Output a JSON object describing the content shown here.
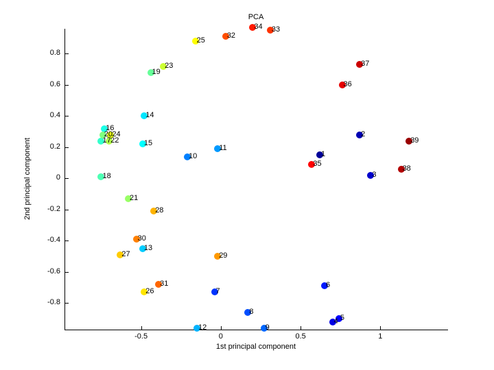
{
  "chart_data": {
    "type": "scatter",
    "title": "PCA",
    "xlabel": "1st principal component",
    "ylabel": "2nd principal component",
    "xlim": [
      -0.98,
      1.42
    ],
    "ylim": [
      -0.97,
      0.96
    ],
    "xticks": [
      "-0.5",
      "0",
      "0.5",
      "1"
    ],
    "xtick_values": [
      -0.5,
      0,
      0.5,
      1
    ],
    "yticks": [
      "0.8",
      "0.6",
      "0.4",
      "0.2",
      "0",
      "-0.2",
      "-0.4",
      "-0.6",
      "-0.8"
    ],
    "ytick_values": [
      0.8,
      0.6,
      0.4,
      0.2,
      0,
      -0.2,
      -0.4,
      -0.6,
      -0.8
    ],
    "grid": false,
    "legend": "none",
    "colormap": "jet",
    "points": [
      {
        "label": "1",
        "x": 0.62,
        "y": 0.15,
        "color": "#000099"
      },
      {
        "label": "2",
        "x": 0.87,
        "y": 0.28,
        "color": "#0000B3"
      },
      {
        "label": "3",
        "x": 0.94,
        "y": 0.02,
        "color": "#0000CC"
      },
      {
        "label": "4",
        "x": 0.7,
        "y": -0.92,
        "color": "#0000E6"
      },
      {
        "label": "5",
        "x": 0.74,
        "y": -0.9,
        "color": "#0000FF"
      },
      {
        "label": "6",
        "x": 0.65,
        "y": -0.69,
        "color": "#001AFF"
      },
      {
        "label": "7",
        "x": -0.04,
        "y": -0.73,
        "color": "#0033FF"
      },
      {
        "label": "8",
        "x": 0.17,
        "y": -0.86,
        "color": "#004DFF"
      },
      {
        "label": "9",
        "x": 0.27,
        "y": -0.96,
        "color": "#0066FF"
      },
      {
        "label": "10",
        "x": -0.21,
        "y": 0.14,
        "color": "#0080FF"
      },
      {
        "label": "11",
        "x": -0.02,
        "y": 0.19,
        "color": "#0099FF"
      },
      {
        "label": "12",
        "x": -0.15,
        "y": -0.96,
        "color": "#00B3FF"
      },
      {
        "label": "13",
        "x": -0.49,
        "y": -0.45,
        "color": "#00CCFF"
      },
      {
        "label": "14",
        "x": -0.48,
        "y": 0.4,
        "color": "#00E6FF"
      },
      {
        "label": "15",
        "x": -0.49,
        "y": 0.22,
        "color": "#00FFFF"
      },
      {
        "label": "16",
        "x": -0.73,
        "y": 0.32,
        "color": "#1AFFE6"
      },
      {
        "label": "17",
        "x": -0.75,
        "y": 0.24,
        "color": "#33FFCC"
      },
      {
        "label": "18",
        "x": -0.75,
        "y": 0.01,
        "color": "#4DFFB3"
      },
      {
        "label": "19",
        "x": -0.44,
        "y": 0.68,
        "color": "#66FF99"
      },
      {
        "label": "20",
        "x": -0.74,
        "y": 0.28,
        "color": "#80FF80"
      },
      {
        "label": "21",
        "x": -0.58,
        "y": -0.13,
        "color": "#99FF66"
      },
      {
        "label": "22",
        "x": -0.7,
        "y": 0.24,
        "color": "#B3FF4D"
      },
      {
        "label": "23",
        "x": -0.36,
        "y": 0.72,
        "color": "#CCFF33"
      },
      {
        "label": "24",
        "x": -0.69,
        "y": 0.28,
        "color": "#E6FF1A"
      },
      {
        "label": "25",
        "x": -0.16,
        "y": 0.88,
        "color": "#FFFF00"
      },
      {
        "label": "26",
        "x": -0.48,
        "y": -0.73,
        "color": "#FFE600"
      },
      {
        "label": "27",
        "x": -0.63,
        "y": -0.49,
        "color": "#FFCC00"
      },
      {
        "label": "28",
        "x": -0.42,
        "y": -0.21,
        "color": "#FFB300"
      },
      {
        "label": "29",
        "x": -0.02,
        "y": -0.5,
        "color": "#FF9900"
      },
      {
        "label": "30",
        "x": -0.53,
        "y": -0.39,
        "color": "#FF8000"
      },
      {
        "label": "31",
        "x": -0.39,
        "y": -0.68,
        "color": "#FF6600"
      },
      {
        "label": "32",
        "x": 0.03,
        "y": 0.91,
        "color": "#FF4D00"
      },
      {
        "label": "33",
        "x": 0.31,
        "y": 0.95,
        "color": "#FF3300"
      },
      {
        "label": "34",
        "x": 0.2,
        "y": 0.97,
        "color": "#FF1A00"
      },
      {
        "label": "35",
        "x": 0.57,
        "y": 0.09,
        "color": "#FF0000"
      },
      {
        "label": "36",
        "x": 0.76,
        "y": 0.6,
        "color": "#E60000"
      },
      {
        "label": "37",
        "x": 0.87,
        "y": 0.73,
        "color": "#CC0000"
      },
      {
        "label": "38",
        "x": 1.13,
        "y": 0.06,
        "color": "#B30000"
      },
      {
        "label": "39",
        "x": 1.18,
        "y": 0.24,
        "color": "#990000"
      }
    ]
  }
}
